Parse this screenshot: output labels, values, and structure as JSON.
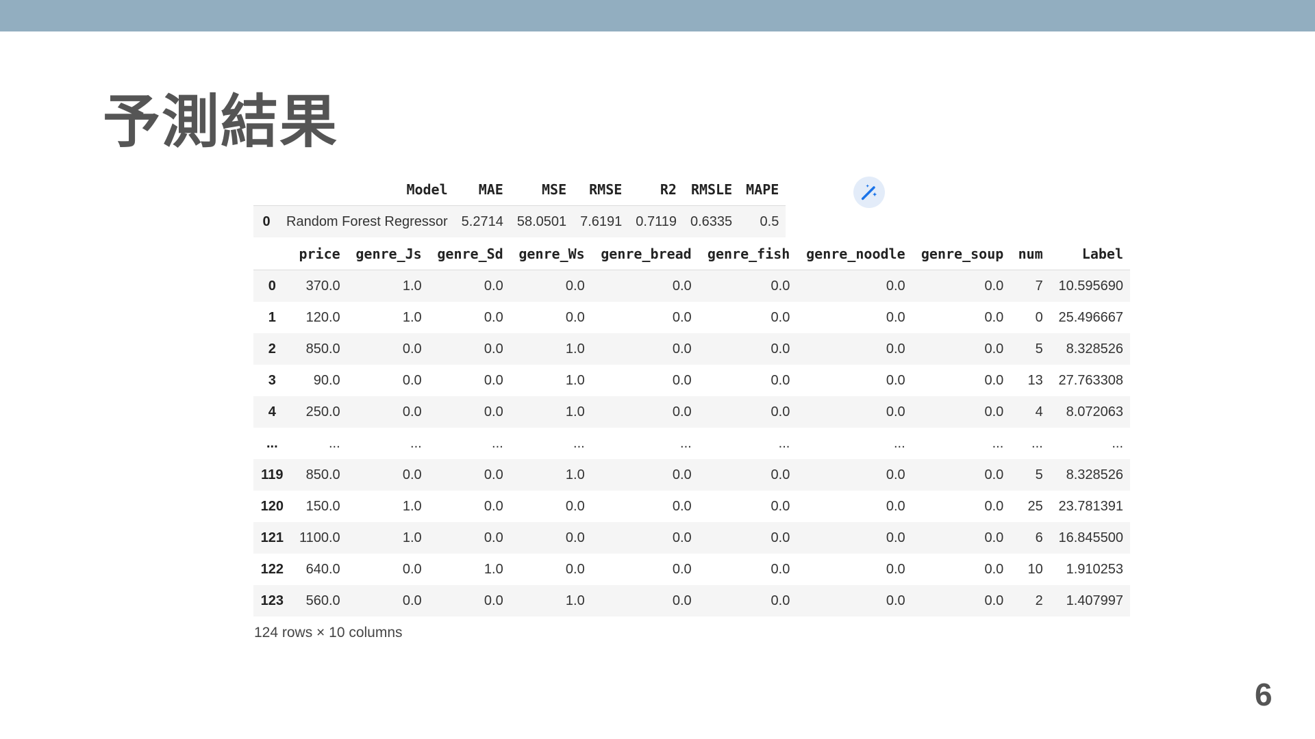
{
  "slide": {
    "title": "予測結果",
    "page_number": "6"
  },
  "metrics_table": {
    "headers": [
      "",
      "Model",
      "MAE",
      "MSE",
      "RMSE",
      "R2",
      "RMSLE",
      "MAPE"
    ],
    "rows": [
      [
        "0",
        "Random Forest Regressor",
        "5.2714",
        "58.0501",
        "7.6191",
        "0.7119",
        "0.6335",
        "0.5"
      ]
    ]
  },
  "magic_button": {
    "icon": "magic-wand-icon",
    "color": "#1a73e8"
  },
  "prediction_table": {
    "headers": [
      "",
      "price",
      "genre_Js",
      "genre_Sd",
      "genre_Ws",
      "genre_bread",
      "genre_fish",
      "genre_noodle",
      "genre_soup",
      "num",
      "Label"
    ],
    "rows": [
      [
        "0",
        "370.0",
        "1.0",
        "0.0",
        "0.0",
        "0.0",
        "0.0",
        "0.0",
        "0.0",
        "7",
        "10.595690"
      ],
      [
        "1",
        "120.0",
        "1.0",
        "0.0",
        "0.0",
        "0.0",
        "0.0",
        "0.0",
        "0.0",
        "0",
        "25.496667"
      ],
      [
        "2",
        "850.0",
        "0.0",
        "0.0",
        "1.0",
        "0.0",
        "0.0",
        "0.0",
        "0.0",
        "5",
        "8.328526"
      ],
      [
        "3",
        "90.0",
        "0.0",
        "0.0",
        "1.0",
        "0.0",
        "0.0",
        "0.0",
        "0.0",
        "13",
        "27.763308"
      ],
      [
        "4",
        "250.0",
        "0.0",
        "0.0",
        "1.0",
        "0.0",
        "0.0",
        "0.0",
        "0.0",
        "4",
        "8.072063"
      ],
      [
        "...",
        "...",
        "...",
        "...",
        "...",
        "...",
        "...",
        "...",
        "...",
        "...",
        "..."
      ],
      [
        "119",
        "850.0",
        "0.0",
        "0.0",
        "1.0",
        "0.0",
        "0.0",
        "0.0",
        "0.0",
        "5",
        "8.328526"
      ],
      [
        "120",
        "150.0",
        "1.0",
        "0.0",
        "0.0",
        "0.0",
        "0.0",
        "0.0",
        "0.0",
        "25",
        "23.781391"
      ],
      [
        "121",
        "1100.0",
        "1.0",
        "0.0",
        "0.0",
        "0.0",
        "0.0",
        "0.0",
        "0.0",
        "6",
        "16.845500"
      ],
      [
        "122",
        "640.0",
        "0.0",
        "1.0",
        "0.0",
        "0.0",
        "0.0",
        "0.0",
        "0.0",
        "10",
        "1.910253"
      ],
      [
        "123",
        "560.0",
        "0.0",
        "0.0",
        "1.0",
        "0.0",
        "0.0",
        "0.0",
        "0.0",
        "2",
        "1.407997"
      ]
    ],
    "footnote": "124 rows × 10 columns"
  },
  "colors": {
    "top_band": "#92aec0",
    "title_text": "#555555",
    "row_stripe": "#f5f5f5"
  }
}
